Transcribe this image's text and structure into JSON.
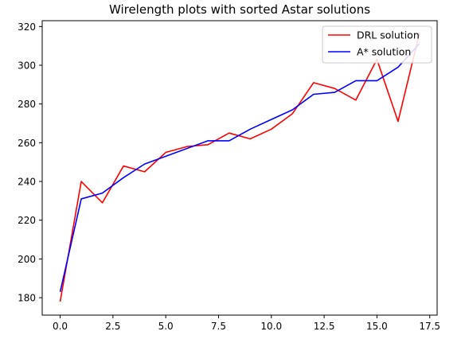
{
  "chart_data": {
    "type": "line",
    "title": "Wirelength plots with sorted Astar solutions",
    "xlabel": "",
    "ylabel": "",
    "xlim": [
      -0.85,
      17.85
    ],
    "ylim": [
      171,
      323
    ],
    "x_ticks": [
      0,
      2.5,
      5,
      7.5,
      10,
      12.5,
      15,
      17.5
    ],
    "x_tick_labels": [
      "0.0",
      "2.5",
      "5.0",
      "7.5",
      "10.0",
      "12.5",
      "15.0",
      "17.5"
    ],
    "y_ticks": [
      180,
      200,
      220,
      240,
      260,
      280,
      300,
      320
    ],
    "y_tick_labels": [
      "180",
      "200",
      "220",
      "240",
      "260",
      "280",
      "300",
      "320"
    ],
    "grid": false,
    "legend_position": "top-right",
    "x": [
      0,
      1,
      2,
      3,
      4,
      5,
      6,
      7,
      8,
      9,
      10,
      11,
      12,
      13,
      14,
      15,
      16,
      17
    ],
    "series": [
      {
        "name": "DRL solution",
        "color": "#ff0000",
        "values": [
          178,
          240,
          229,
          248,
          245,
          255,
          258,
          259,
          265,
          262,
          267,
          275,
          291,
          288,
          282,
          303,
          271,
          316
        ]
      },
      {
        "name": "A* solution",
        "color": "#0000ff",
        "values": [
          183,
          231,
          234,
          242,
          249,
          253,
          257,
          261,
          261,
          267,
          272,
          277,
          285,
          286,
          292,
          292,
          299,
          311
        ]
      }
    ]
  }
}
